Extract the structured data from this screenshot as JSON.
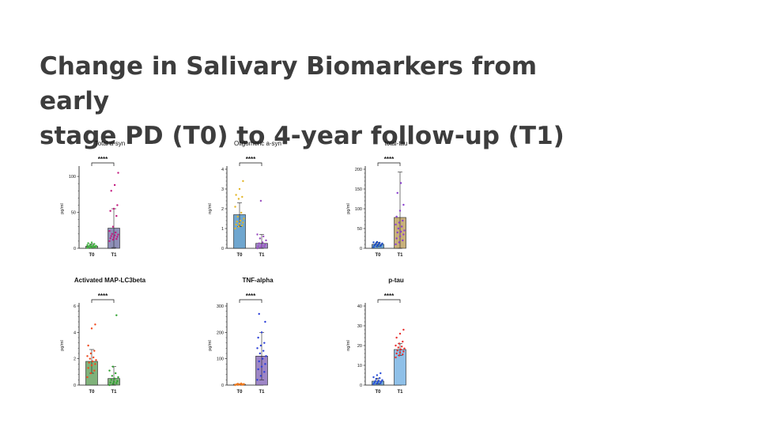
{
  "slide": {
    "title_line1": "Change in Salivary Biomarkers from early",
    "title_line2": "stage PD (T0) to 4-year follow-up (T1)"
  },
  "chart_data": [
    {
      "type": "bar",
      "title": "Total a-syn",
      "ylabel": "pg/ml",
      "categories": [
        "T0",
        "T1"
      ],
      "values": [
        3,
        28
      ],
      "errors": [
        3,
        27
      ],
      "ylim": [
        0,
        110
      ],
      "yticks": [
        0,
        50,
        100
      ],
      "significance": "****",
      "bar_colors": [
        "#7fb27a",
        "#8e8fb8"
      ],
      "point_colors": [
        "#3fb03f",
        "#c2187e"
      ],
      "points": [
        [
          0.5,
          1,
          1.5,
          2,
          2,
          2.5,
          3,
          3,
          3.5,
          4,
          4,
          4.5,
          5,
          6,
          7,
          8
        ],
        [
          10,
          12,
          13,
          14,
          15,
          16,
          17,
          18,
          19,
          20,
          22,
          24,
          30,
          45,
          52,
          55,
          60,
          80,
          88,
          105
        ]
      ]
    },
    {
      "type": "bar",
      "title": "Oligomeric a-syn",
      "ylabel": "ng/ml",
      "categories": [
        "T0",
        "T1"
      ],
      "values": [
        1.7,
        0.25
      ],
      "errors": [
        0.6,
        0.45
      ],
      "ylim": [
        0,
        4
      ],
      "yticks": [
        0,
        1,
        2,
        3,
        4
      ],
      "significance": "****",
      "bar_colors": [
        "#6fa6cf",
        "#9e86c6"
      ],
      "point_colors": [
        "#e3b72b",
        "#9a4fc0"
      ],
      "points": [
        [
          1.0,
          1.1,
          1.15,
          1.2,
          1.25,
          1.3,
          1.35,
          1.4,
          1.5,
          1.6,
          1.8,
          2.1,
          2.5,
          2.6,
          2.7,
          3.0,
          3.4
        ],
        [
          0.0,
          0.05,
          0.1,
          0.1,
          0.15,
          0.2,
          0.25,
          0.3,
          0.4,
          0.5,
          0.6,
          0.7,
          2.4
        ]
      ]
    },
    {
      "type": "bar",
      "title": "total-tau",
      "ylabel": "pg/ml",
      "categories": [
        "T0",
        "T1"
      ],
      "values": [
        10,
        78
      ],
      "errors": [
        5,
        115
      ],
      "ylim": [
        0,
        200
      ],
      "yticks": [
        0,
        50,
        100,
        150,
        200
      ],
      "significance": "****",
      "bar_colors": [
        "#6fa6cf",
        "#c8b07a"
      ],
      "point_colors": [
        "#1f4ec2",
        "#8a3fd0"
      ],
      "points": [
        [
          3,
          5,
          6,
          7,
          8,
          9,
          10,
          11,
          12,
          13,
          14,
          15,
          16
        ],
        [
          10,
          15,
          20,
          25,
          30,
          35,
          40,
          42,
          45,
          50,
          55,
          60,
          65,
          70,
          80,
          95,
          110,
          140,
          165
        ]
      ]
    },
    {
      "type": "bar",
      "title": "Activated MAP-LC3beta",
      "ylabel": "pg/ml",
      "categories": [
        "T0",
        "T1"
      ],
      "values": [
        1.8,
        0.5
      ],
      "errors": [
        0.9,
        0.9
      ],
      "ylim": [
        0,
        6
      ],
      "yticks": [
        0,
        2,
        4,
        6
      ],
      "significance": "****",
      "bar_colors": [
        "#7fb27a",
        "#7fb27a"
      ],
      "point_colors": [
        "#f04a1f",
        "#2fa22f"
      ],
      "points": [
        [
          0.6,
          0.9,
          1.1,
          1.3,
          1.5,
          1.6,
          1.7,
          1.8,
          1.9,
          2.0,
          2.1,
          2.2,
          2.4,
          2.6,
          3.0,
          4.3,
          4.6
        ],
        [
          0.0,
          0.1,
          0.15,
          0.2,
          0.25,
          0.3,
          0.4,
          0.5,
          0.6,
          0.7,
          0.9,
          1.1,
          1.4,
          5.3
        ]
      ]
    },
    {
      "type": "bar",
      "title": "TNF-alpha",
      "ylabel": "pg/ml",
      "categories": [
        "T0",
        "T1"
      ],
      "values": [
        3,
        110
      ],
      "errors": [
        2,
        90
      ],
      "ylim": [
        0,
        300
      ],
      "yticks": [
        0,
        100,
        200,
        300
      ],
      "significance": "****",
      "bar_colors": [
        "#f3a25a",
        "#9e86c6"
      ],
      "point_colors": [
        "#f07a1f",
        "#2b3fd8"
      ],
      "points": [
        [
          0,
          1,
          1,
          2,
          2,
          3,
          3,
          4,
          4,
          5,
          6
        ],
        [
          20,
          35,
          50,
          60,
          70,
          80,
          90,
          100,
          110,
          120,
          130,
          140,
          150,
          160,
          180,
          200,
          240,
          270
        ]
      ]
    },
    {
      "type": "bar",
      "title": "p-tau",
      "ylabel": "ng/ml",
      "categories": [
        "T0",
        "T1"
      ],
      "values": [
        2,
        18
      ],
      "errors": [
        1.5,
        3
      ],
      "ylim": [
        0,
        40
      ],
      "yticks": [
        0,
        10,
        20,
        30,
        40
      ],
      "significance": "****",
      "bar_colors": [
        "#6fa6cf",
        "#8fc0e8"
      ],
      "point_colors": [
        "#2b4fd8",
        "#e8302f"
      ],
      "points": [
        [
          0.5,
          0.8,
          1.0,
          1.2,
          1.5,
          1.8,
          2.0,
          2.2,
          2.5,
          3.0,
          3.5,
          4.0,
          5.0,
          6.0
        ],
        [
          14,
          15,
          15.5,
          16,
          16.5,
          17,
          17.5,
          18,
          18.5,
          19,
          19.5,
          20,
          21,
          22,
          24,
          26,
          28
        ]
      ]
    }
  ]
}
